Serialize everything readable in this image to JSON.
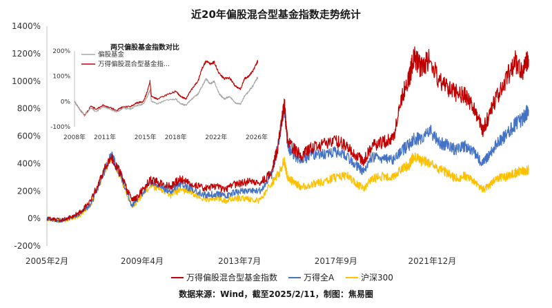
{
  "chart_data": [
    {
      "type": "line",
      "title": "近20年偏股混合型基金指数走势统计",
      "ylim": [
        -200,
        1400
      ],
      "y_ticks": [
        "-200%",
        "0%",
        "200%",
        "400%",
        "600%",
        "800%",
        "1000%",
        "1200%",
        "1400%"
      ],
      "x_tick_labels": [
        "2005年2月",
        "2009年4月",
        "2013年7月",
        "2017年9月",
        "2021年12月"
      ],
      "x_tick_values": [
        2005.1,
        2009.25,
        2013.5,
        2017.7,
        2021.9
      ],
      "xlim": [
        2005.1,
        2026.1
      ],
      "grid": false,
      "legend_position": "bottom",
      "series": [
        {
          "name": "万得偏股混合型基金指数",
          "color": "#c00000",
          "points": [
            [
              2005.1,
              0
            ],
            [
              2005.6,
              -10
            ],
            [
              2006.0,
              0
            ],
            [
              2006.5,
              40
            ],
            [
              2007.0,
              120
            ],
            [
              2007.5,
              320
            ],
            [
              2007.9,
              450
            ],
            [
              2008.3,
              330
            ],
            [
              2008.8,
              130
            ],
            [
              2009.0,
              150
            ],
            [
              2009.6,
              280
            ],
            [
              2010.0,
              260
            ],
            [
              2010.5,
              230
            ],
            [
              2010.9,
              290
            ],
            [
              2011.4,
              260
            ],
            [
              2012.0,
              220
            ],
            [
              2012.5,
              230
            ],
            [
              2012.9,
              210
            ],
            [
              2013.3,
              250
            ],
            [
              2013.9,
              270
            ],
            [
              2014.4,
              265
            ],
            [
              2014.9,
              330
            ],
            [
              2015.2,
              550
            ],
            [
              2015.45,
              840
            ],
            [
              2015.6,
              560
            ],
            [
              2015.9,
              500
            ],
            [
              2016.2,
              460
            ],
            [
              2016.7,
              520
            ],
            [
              2017.2,
              540
            ],
            [
              2017.7,
              570
            ],
            [
              2018.2,
              520
            ],
            [
              2018.6,
              460
            ],
            [
              2018.9,
              420
            ],
            [
              2019.3,
              530
            ],
            [
              2019.8,
              560
            ],
            [
              2020.2,
              580
            ],
            [
              2020.6,
              900
            ],
            [
              2020.9,
              1020
            ],
            [
              2021.1,
              1180
            ],
            [
              2021.4,
              1100
            ],
            [
              2021.8,
              1160
            ],
            [
              2022.2,
              1000
            ],
            [
              2022.6,
              950
            ],
            [
              2022.9,
              920
            ],
            [
              2023.3,
              900
            ],
            [
              2023.7,
              800
            ],
            [
              2024.1,
              640
            ],
            [
              2024.4,
              760
            ],
            [
              2024.75,
              900
            ],
            [
              2025.1,
              1000
            ],
            [
              2025.5,
              1150
            ],
            [
              2025.8,
              1070
            ],
            [
              2026.0,
              1130
            ],
            [
              2026.1,
              1160
            ]
          ]
        },
        {
          "name": "万得全A",
          "color": "#4472c4",
          "points": [
            [
              2005.1,
              0
            ],
            [
              2005.6,
              -15
            ],
            [
              2006.0,
              -5
            ],
            [
              2006.5,
              30
            ],
            [
              2007.0,
              100
            ],
            [
              2007.5,
              300
            ],
            [
              2007.9,
              460
            ],
            [
              2008.3,
              320
            ],
            [
              2008.8,
              100
            ],
            [
              2009.0,
              130
            ],
            [
              2009.6,
              260
            ],
            [
              2010.0,
              240
            ],
            [
              2010.5,
              200
            ],
            [
              2010.9,
              250
            ],
            [
              2011.4,
              220
            ],
            [
              2012.0,
              170
            ],
            [
              2012.5,
              180
            ],
            [
              2012.9,
              160
            ],
            [
              2013.3,
              190
            ],
            [
              2013.9,
              210
            ],
            [
              2014.4,
              200
            ],
            [
              2014.9,
              320
            ],
            [
              2015.2,
              550
            ],
            [
              2015.45,
              830
            ],
            [
              2015.6,
              520
            ],
            [
              2015.9,
              460
            ],
            [
              2016.2,
              420
            ],
            [
              2016.7,
              470
            ],
            [
              2017.2,
              470
            ],
            [
              2017.7,
              490
            ],
            [
              2018.2,
              450
            ],
            [
              2018.6,
              380
            ],
            [
              2018.9,
              340
            ],
            [
              2019.3,
              450
            ],
            [
              2019.8,
              440
            ],
            [
              2020.2,
              420
            ],
            [
              2020.6,
              500
            ],
            [
              2020.9,
              540
            ],
            [
              2021.1,
              590
            ],
            [
              2021.4,
              570
            ],
            [
              2021.8,
              640
            ],
            [
              2022.2,
              550
            ],
            [
              2022.6,
              530
            ],
            [
              2022.9,
              500
            ],
            [
              2023.3,
              530
            ],
            [
              2023.7,
              480
            ],
            [
              2024.1,
              400
            ],
            [
              2024.4,
              460
            ],
            [
              2024.75,
              560
            ],
            [
              2025.1,
              600
            ],
            [
              2025.5,
              680
            ],
            [
              2025.8,
              720
            ],
            [
              2026.0,
              760
            ],
            [
              2026.1,
              790
            ]
          ]
        },
        {
          "name": "沪深300",
          "color": "#ffc000",
          "points": [
            [
              2005.1,
              0
            ],
            [
              2005.6,
              -20
            ],
            [
              2006.0,
              -10
            ],
            [
              2006.5,
              20
            ],
            [
              2007.0,
              90
            ],
            [
              2007.5,
              300
            ],
            [
              2007.9,
              460
            ],
            [
              2008.3,
              310
            ],
            [
              2008.8,
              90
            ],
            [
              2009.0,
              120
            ],
            [
              2009.6,
              240
            ],
            [
              2010.0,
              220
            ],
            [
              2010.5,
              170
            ],
            [
              2010.9,
              210
            ],
            [
              2011.4,
              190
            ],
            [
              2012.0,
              140
            ],
            [
              2012.5,
              150
            ],
            [
              2012.9,
              130
            ],
            [
              2013.3,
              150
            ],
            [
              2013.9,
              140
            ],
            [
              2014.4,
              130
            ],
            [
              2014.9,
              260
            ],
            [
              2015.2,
              320
            ],
            [
              2015.45,
              420
            ],
            [
              2015.6,
              290
            ],
            [
              2015.9,
              260
            ],
            [
              2016.2,
              230
            ],
            [
              2016.7,
              250
            ],
            [
              2017.2,
              270
            ],
            [
              2017.7,
              300
            ],
            [
              2018.2,
              310
            ],
            [
              2018.6,
              250
            ],
            [
              2018.9,
              220
            ],
            [
              2019.3,
              290
            ],
            [
              2019.8,
              310
            ],
            [
              2020.2,
              300
            ],
            [
              2020.6,
              370
            ],
            [
              2020.9,
              390
            ],
            [
              2021.1,
              460
            ],
            [
              2021.4,
              420
            ],
            [
              2021.8,
              410
            ],
            [
              2022.2,
              360
            ],
            [
              2022.6,
              330
            ],
            [
              2022.9,
              290
            ],
            [
              2023.3,
              310
            ],
            [
              2023.7,
              270
            ],
            [
              2024.1,
              210
            ],
            [
              2024.4,
              240
            ],
            [
              2024.75,
              300
            ],
            [
              2025.1,
              300
            ],
            [
              2025.5,
              330
            ],
            [
              2025.8,
              350
            ],
            [
              2026.0,
              350
            ],
            [
              2026.1,
              355
            ]
          ]
        }
      ]
    },
    {
      "type": "line",
      "title": "两只偏股基金指数对比",
      "ylim": [
        -100,
        200
      ],
      "y_ticks": [
        "200%",
        "100%",
        "0%",
        "-100%"
      ],
      "x_tick_labels": [
        "2008年",
        "2011年",
        "2015年",
        "2018年",
        "2022年",
        "2026年"
      ],
      "x_tick_values": [
        2008,
        2011,
        2015,
        2018,
        2022,
        2026
      ],
      "xlim": [
        2008,
        2026
      ],
      "grid": false,
      "legend_position": "top-left",
      "series": [
        {
          "name": "偏股基金",
          "color": "#a6a6a6",
          "points": [
            [
              2008.0,
              0
            ],
            [
              2008.5,
              -30
            ],
            [
              2009.0,
              -55
            ],
            [
              2009.6,
              -25
            ],
            [
              2010.2,
              -40
            ],
            [
              2010.8,
              -20
            ],
            [
              2011.5,
              -30
            ],
            [
              2012.2,
              -40
            ],
            [
              2012.8,
              -25
            ],
            [
              2013.5,
              -30
            ],
            [
              2014.2,
              -15
            ],
            [
              2014.8,
              -10
            ],
            [
              2015.2,
              20
            ],
            [
              2015.45,
              45
            ],
            [
              2015.6,
              0
            ],
            [
              2016.2,
              -10
            ],
            [
              2017.0,
              5
            ],
            [
              2018.0,
              10
            ],
            [
              2018.5,
              -10
            ],
            [
              2019.0,
              -15
            ],
            [
              2019.6,
              10
            ],
            [
              2020.2,
              30
            ],
            [
              2020.6,
              60
            ],
            [
              2021.0,
              90
            ],
            [
              2021.4,
              70
            ],
            [
              2021.8,
              80
            ],
            [
              2022.3,
              30
            ],
            [
              2022.8,
              10
            ],
            [
              2023.3,
              20
            ],
            [
              2023.9,
              -5
            ],
            [
              2024.4,
              -10
            ],
            [
              2024.8,
              20
            ],
            [
              2025.2,
              40
            ],
            [
              2025.6,
              60
            ],
            [
              2026.0,
              90
            ],
            [
              2026.1,
              95
            ]
          ]
        },
        {
          "name": "万得偏股混合型基金指...",
          "color": "#c00000",
          "points": [
            [
              2008.0,
              0
            ],
            [
              2008.5,
              -30
            ],
            [
              2009.0,
              -55
            ],
            [
              2009.6,
              -20
            ],
            [
              2010.2,
              -30
            ],
            [
              2010.8,
              -15
            ],
            [
              2011.5,
              -25
            ],
            [
              2012.2,
              -35
            ],
            [
              2012.8,
              -20
            ],
            [
              2013.5,
              -20
            ],
            [
              2014.2,
              -5
            ],
            [
              2014.8,
              0
            ],
            [
              2015.2,
              40
            ],
            [
              2015.45,
              80
            ],
            [
              2015.6,
              20
            ],
            [
              2016.2,
              10
            ],
            [
              2017.0,
              25
            ],
            [
              2018.0,
              40
            ],
            [
              2018.5,
              20
            ],
            [
              2019.0,
              10
            ],
            [
              2019.6,
              50
            ],
            [
              2020.2,
              80
            ],
            [
              2020.6,
              130
            ],
            [
              2021.0,
              160
            ],
            [
              2021.4,
              150
            ],
            [
              2021.8,
              155
            ],
            [
              2022.3,
              110
            ],
            [
              2022.8,
              90
            ],
            [
              2023.3,
              95
            ],
            [
              2023.9,
              60
            ],
            [
              2024.4,
              50
            ],
            [
              2024.8,
              90
            ],
            [
              2025.2,
              100
            ],
            [
              2025.6,
              120
            ],
            [
              2026.0,
              150
            ],
            [
              2026.1,
              160
            ]
          ]
        }
      ]
    }
  ],
  "source_note": "数据来源：Wind，截至2025/2/11，制图：焦易圈"
}
